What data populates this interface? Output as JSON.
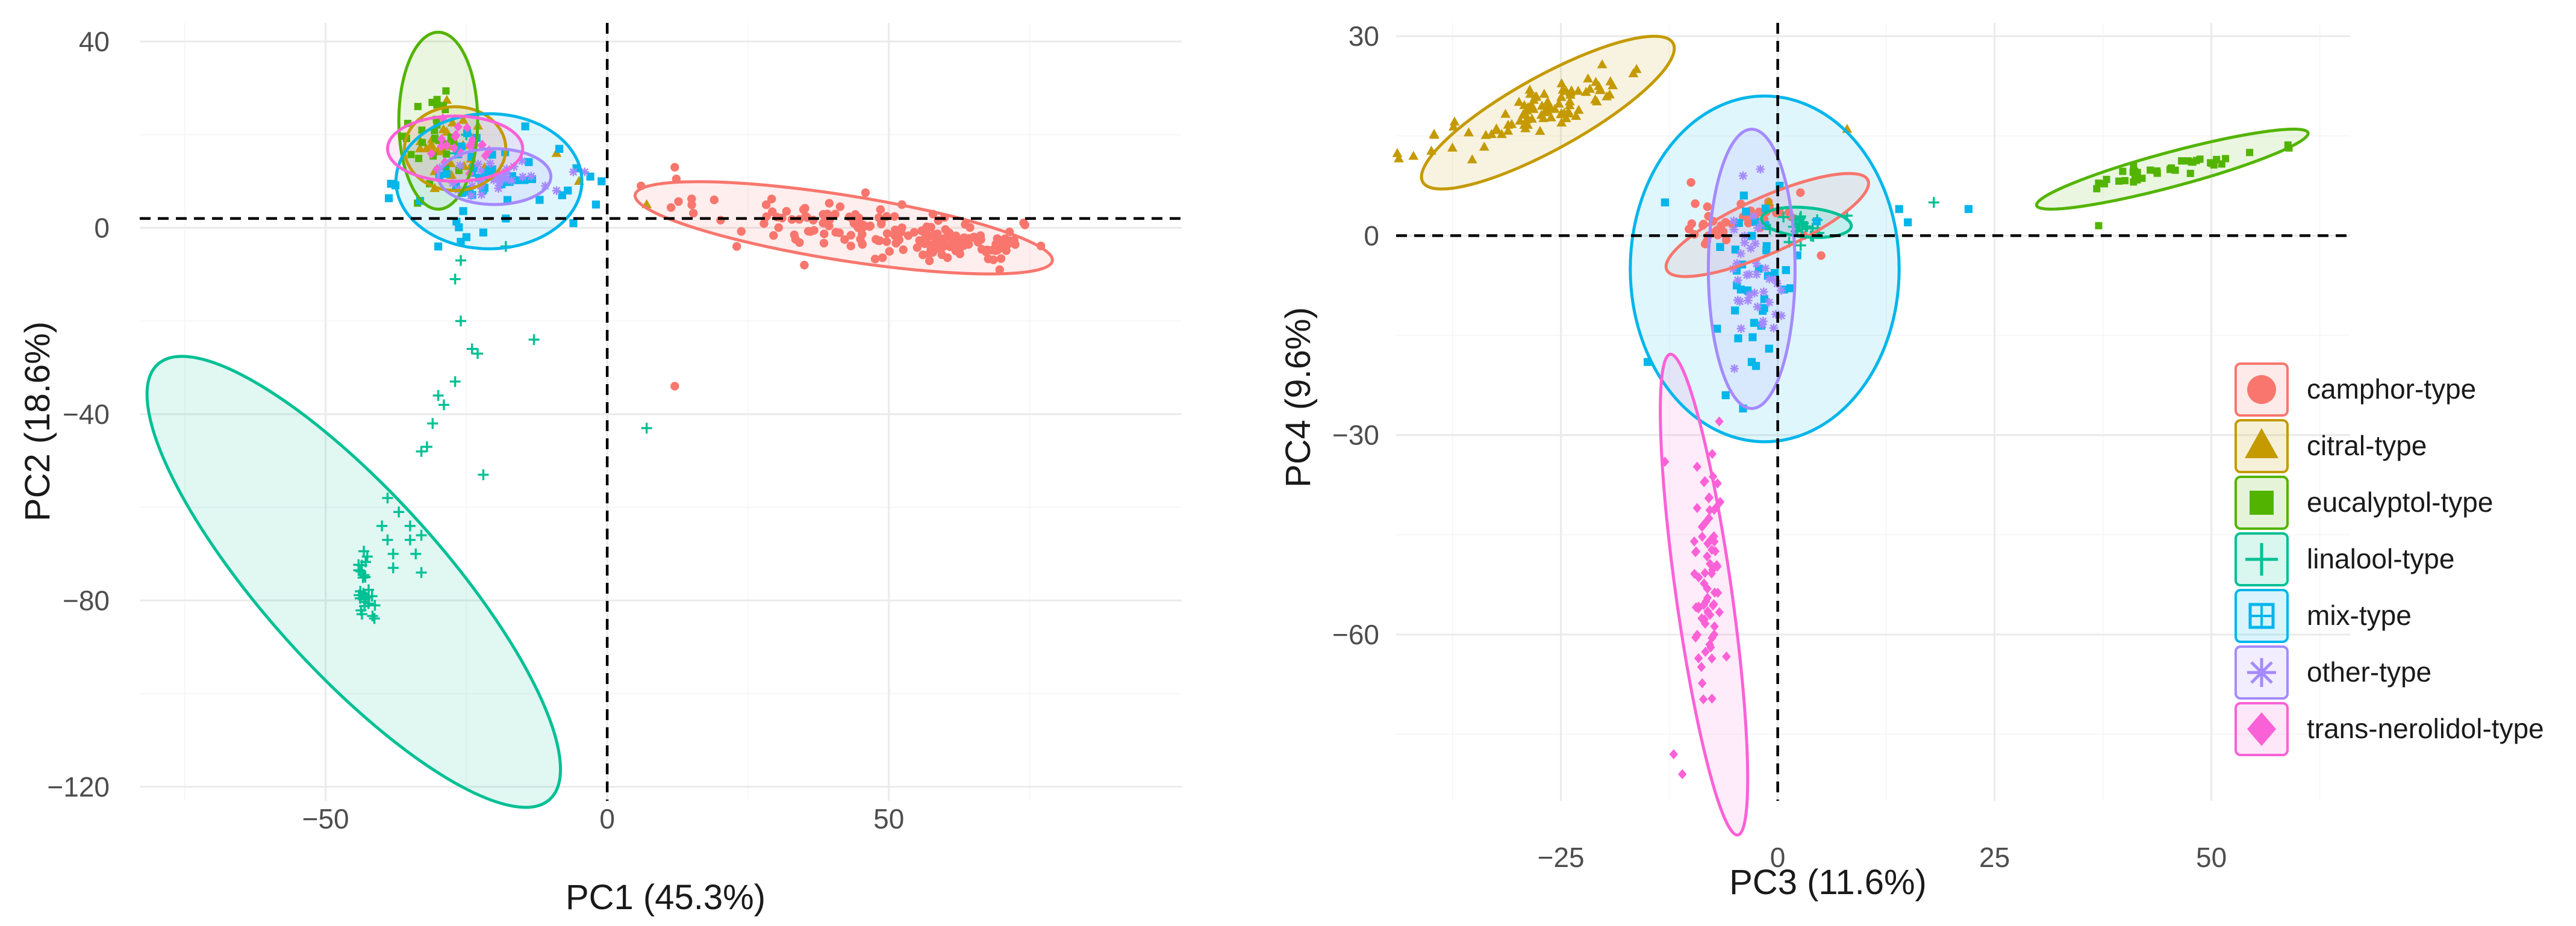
{
  "colors": {
    "camphor-type": "#F8766D",
    "citral-type": "#C49A00",
    "eucalyptol-type": "#53B400",
    "linalool-type": "#00C094",
    "mix-type": "#00B6EB",
    "other-type": "#A58AFF",
    "trans-nerolidol-type": "#FB61D7"
  },
  "legend": {
    "items": [
      {
        "label": "camphor-type",
        "icon": "circle-icon",
        "color": "#F8766D"
      },
      {
        "label": "citral-type",
        "icon": "triangle-icon",
        "color": "#C49A00"
      },
      {
        "label": "eucalyptol-type",
        "icon": "square-icon",
        "color": "#53B400"
      },
      {
        "label": "linalool-type",
        "icon": "plus-icon",
        "color": "#00C094"
      },
      {
        "label": "mix-type",
        "icon": "square-plus-icon",
        "color": "#00B6EB"
      },
      {
        "label": "other-type",
        "icon": "asterisk-icon",
        "color": "#A58AFF"
      },
      {
        "label": "trans-nerolidol-type",
        "icon": "diamond-icon",
        "color": "#FB61D7"
      }
    ]
  },
  "chart_data": [
    {
      "type": "scatter",
      "title": "",
      "xlabel": "PC1 (45.3%)",
      "ylabel": "PC2 (18.6%)",
      "xlim": [
        -83,
        102
      ],
      "ylim": [
        -123,
        44
      ],
      "xticks": [
        -50,
        0,
        50
      ],
      "yticks": [
        40,
        0,
        -40,
        -80,
        -120
      ],
      "xtick_labels": [
        "−50",
        "0",
        "50"
      ],
      "ytick_labels": [
        "40",
        "0",
        "−40",
        "−80",
        "−120"
      ],
      "reference_lines": {
        "x": 0,
        "y": 2
      },
      "series": [
        {
          "name": "camphor-type",
          "ellipse": {
            "cx": 42,
            "cy": 0,
            "rx": 37.5,
            "ry": 7.0,
            "angle": -9
          },
          "clusters": [
            {
              "cx": 45,
              "cy": 0,
              "sx": 14,
              "sy": 3,
              "angle": -8,
              "n": 130
            },
            {
              "cx": 64,
              "cy": -3,
              "sx": 5,
              "sy": 1.2,
              "angle": -8,
              "n": 60
            }
          ],
          "points": [
            [
              6,
              9
            ],
            [
              12,
              13
            ],
            [
              19,
              6
            ],
            [
              12,
              -34
            ],
            [
              23,
              -4
            ],
            [
              35,
              -8
            ]
          ]
        },
        {
          "name": "citral-type",
          "ellipse": {
            "cx": -27,
            "cy": 17,
            "rx": 9,
            "ry": 9,
            "angle": 0
          },
          "clusters": [
            {
              "cx": -28,
              "cy": 17,
              "sx": 3.5,
              "sy": 4,
              "angle": 0,
              "n": 30
            }
          ],
          "points": [
            [
              -9,
              16
            ],
            [
              -5,
              10
            ],
            [
              7,
              5
            ]
          ]
        },
        {
          "name": "eucalyptol-type",
          "ellipse": {
            "cx": -30,
            "cy": 23,
            "rx": 7,
            "ry": 19,
            "angle": 0
          },
          "clusters": [
            {
              "cx": -30,
              "cy": 19,
              "sx": 2.5,
              "sy": 6,
              "angle": 0,
              "n": 28
            }
          ],
          "points": []
        },
        {
          "name": "linalool-type",
          "ellipse": {
            "cx": -45,
            "cy": -76,
            "rx": 52,
            "ry": 19,
            "angle": -48
          },
          "clusters": [
            {
              "cx": -43,
              "cy": -77,
              "sx": 0.8,
              "sy": 4,
              "angle": 0,
              "n": 28
            }
          ],
          "points": [
            [
              -24,
              -26
            ],
            [
              -13,
              -24
            ],
            [
              -23,
              -27
            ],
            [
              -29,
              -38
            ],
            [
              -30,
              -36
            ],
            [
              -31,
              -42
            ],
            [
              -32,
              -47
            ],
            [
              -33,
              -48
            ],
            [
              -22,
              -53
            ],
            [
              -39,
              -58
            ],
            [
              -37,
              -61
            ],
            [
              -40,
              -64
            ],
            [
              -35,
              -64
            ],
            [
              -33,
              -66
            ],
            [
              -39,
              -67
            ],
            [
              -35,
              -67
            ],
            [
              -38,
              -70
            ],
            [
              -34,
              -70
            ],
            [
              -38,
              -73
            ],
            [
              -33,
              -74
            ],
            [
              -26,
              -20
            ],
            [
              -27,
              -33
            ],
            [
              -26,
              -7
            ],
            [
              -27,
              -11
            ],
            [
              -29,
              13
            ],
            [
              -27,
              16
            ],
            [
              -25,
              20
            ],
            [
              7,
              -43
            ],
            [
              -18,
              -4
            ]
          ]
        },
        {
          "name": "mix-type",
          "ellipse": {
            "cx": -21,
            "cy": 10,
            "rx": 16.5,
            "ry": 14.5,
            "angle": 0
          },
          "clusters": [
            {
              "cx": -22,
              "cy": 11,
              "sx": 6.5,
              "sy": 5.5,
              "angle": 0,
              "n": 42
            }
          ],
          "points": [
            [
              -2,
              5
            ],
            [
              -6,
              1
            ],
            [
              -3,
              11
            ],
            [
              -7,
              8
            ],
            [
              -18,
              2
            ],
            [
              -22,
              -1
            ],
            [
              -25,
              -2
            ],
            [
              -26,
              -3
            ],
            [
              -30,
              -4
            ],
            [
              -8,
              7
            ],
            [
              -12,
              6
            ],
            [
              -1,
              10
            ]
          ]
        },
        {
          "name": "other-type",
          "ellipse": {
            "cx": -20,
            "cy": 11,
            "rx": 10,
            "ry": 6,
            "angle": 0
          },
          "clusters": [
            {
              "cx": -20,
              "cy": 11,
              "sx": 4,
              "sy": 2.5,
              "angle": 0,
              "n": 26
            }
          ],
          "points": [
            [
              -11,
              9
            ],
            [
              -9,
              8
            ],
            [
              -6,
              12
            ],
            [
              -4,
              12
            ]
          ]
        },
        {
          "name": "trans-nerolidol-type",
          "ellipse": {
            "cx": -27,
            "cy": 17,
            "rx": 12,
            "ry": 7,
            "angle": 0
          },
          "clusters": [
            {
              "cx": -27,
              "cy": 17,
              "sx": 4.5,
              "sy": 2.5,
              "angle": 0,
              "n": 22
            }
          ],
          "points": []
        }
      ]
    },
    {
      "type": "scatter",
      "title": "",
      "xlabel": "PC3 (11.6%)",
      "ylabel": "PC4 (9.6%)",
      "xlim": [
        -44,
        66
      ],
      "ylim": [
        -85,
        32
      ],
      "xticks": [
        -25,
        0,
        25,
        50
      ],
      "yticks": [
        30,
        0,
        -30,
        -60
      ],
      "xtick_labels": [
        "−25",
        "0",
        "25",
        "50"
      ],
      "ytick_labels": [
        "30",
        "0",
        "−30",
        "−60"
      ],
      "reference_lines": {
        "x": 0,
        "y": 0
      },
      "series": [
        {
          "name": "camphor-type",
          "ellipse": {
            "cx": -1.2,
            "cy": 1.6,
            "rx": 12.7,
            "ry": 4.2,
            "angle": 24
          },
          "clusters": [
            {
              "cx": -4,
              "cy": 3,
              "sx": 4,
              "sy": 1.5,
              "angle": 24,
              "n": 40
            }
          ],
          "points": [
            [
              5,
              -3
            ],
            [
              -10,
              8
            ],
            [
              3,
              0
            ]
          ]
        },
        {
          "name": "citral-type",
          "ellipse": {
            "cx": -26.5,
            "cy": 18.5,
            "rx": 16.5,
            "ry": 5.5,
            "angle": 29
          },
          "clusters": [
            {
              "cx": -27,
              "cy": 19,
              "sx": 7,
              "sy": 1.5,
              "angle": 29,
              "n": 90
            }
          ],
          "points": [
            [
              8,
              16
            ],
            [
              -1,
              5
            ]
          ]
        },
        {
          "name": "eucalyptol-type",
          "ellipse": {
            "cx": 45.5,
            "cy": 10,
            "rx": 16.2,
            "ry": 2.6,
            "angle": 15
          },
          "clusters": [
            {
              "cx": 45,
              "cy": 10,
              "sx": 5.5,
              "sy": 0.6,
              "angle": 15,
              "n": 40
            }
          ],
          "points": [
            [
              37,
              1.5
            ]
          ]
        },
        {
          "name": "linalool-type",
          "ellipse": {
            "cx": 3.3,
            "cy": 2,
            "rx": 5.2,
            "ry": 2.2,
            "angle": -5
          },
          "clusters": [
            {
              "cx": 3,
              "cy": 1,
              "sx": 1.5,
              "sy": 1.2,
              "angle": 0,
              "n": 24
            }
          ],
          "points": [
            [
              18,
              5
            ],
            [
              8,
              3
            ]
          ]
        },
        {
          "name": "mix-type",
          "ellipse": {
            "cx": -1.5,
            "cy": -5,
            "rx": 15.5,
            "ry": 26,
            "angle": 0
          },
          "clusters": [
            {
              "cx": -2,
              "cy": -4,
              "sx": 2.5,
              "sy": 6,
              "angle": 0,
              "n": 34
            }
          ],
          "points": [
            [
              15,
              2
            ],
            [
              14,
              4
            ],
            [
              22,
              4
            ],
            [
              -13,
              5
            ],
            [
              -15,
              -19
            ],
            [
              -6,
              -24
            ],
            [
              -1,
              -17
            ],
            [
              -3,
              -19
            ],
            [
              -7,
              -14
            ],
            [
              -4,
              -26
            ]
          ]
        },
        {
          "name": "other-type",
          "ellipse": {
            "cx": -3,
            "cy": -5,
            "rx": 5,
            "ry": 21,
            "angle": 0
          },
          "clusters": [
            {
              "cx": -3,
              "cy": -5,
              "sx": 1.6,
              "sy": 4.5,
              "angle": 0,
              "n": 36
            }
          ],
          "points": [
            [
              -5,
              -20
            ],
            [
              -2,
              10
            ],
            [
              -4,
              9
            ]
          ]
        },
        {
          "name": "trans-nerolidol-type",
          "ellipse": {
            "cx": -8.5,
            "cy": -54,
            "rx": 28,
            "ry": 4.2,
            "angle": -82
          },
          "clusters": [
            {
              "cx": -8,
              "cy": -52,
              "sx": 0.9,
              "sy": 9.5,
              "angle": 0,
              "n": 70
            }
          ],
          "points": [
            [
              -13,
              -34
            ],
            [
              -11,
              -81
            ],
            [
              -12,
              -78
            ]
          ]
        }
      ]
    }
  ]
}
